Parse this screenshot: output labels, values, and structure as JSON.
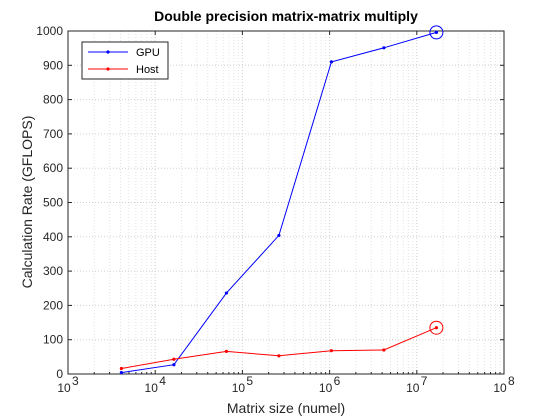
{
  "chart_data": {
    "type": "line",
    "title": "Double precision matrix-matrix multiply",
    "xlabel": "Matrix size (numel)",
    "ylabel": "Calculation Rate (GFLOPS)",
    "x_scale": "log",
    "xlim": [
      1000,
      100000000
    ],
    "ylim": [
      0,
      1000
    ],
    "x_ticks": [
      {
        "value": 1000,
        "base": "10",
        "exp": "3"
      },
      {
        "value": 10000,
        "base": "10",
        "exp": "4"
      },
      {
        "value": 100000,
        "base": "10",
        "exp": "5"
      },
      {
        "value": 1000000,
        "base": "10",
        "exp": "6"
      },
      {
        "value": 10000000,
        "base": "10",
        "exp": "7"
      },
      {
        "value": 100000000,
        "base": "10",
        "exp": "8"
      }
    ],
    "y_ticks": [
      "0",
      "100",
      "200",
      "300",
      "400",
      "500",
      "600",
      "700",
      "800",
      "900",
      "1000"
    ],
    "grid": true,
    "minor_grid": true,
    "legend_position": "top-left",
    "series": [
      {
        "name": "GPU",
        "color": "#0000ff",
        "x": [
          4096,
          16384,
          65536,
          262144,
          1048576,
          4194304,
          16777216
        ],
        "y": [
          4,
          27,
          236,
          404,
          910,
          951,
          996
        ],
        "highlight_index": 6
      },
      {
        "name": "Host",
        "color": "#ff0000",
        "x": [
          4096,
          16384,
          65536,
          262144,
          1048576,
          4194304,
          16777216
        ],
        "y": [
          16,
          43,
          66,
          53,
          68,
          70,
          135
        ],
        "highlight_index": 6
      }
    ]
  }
}
